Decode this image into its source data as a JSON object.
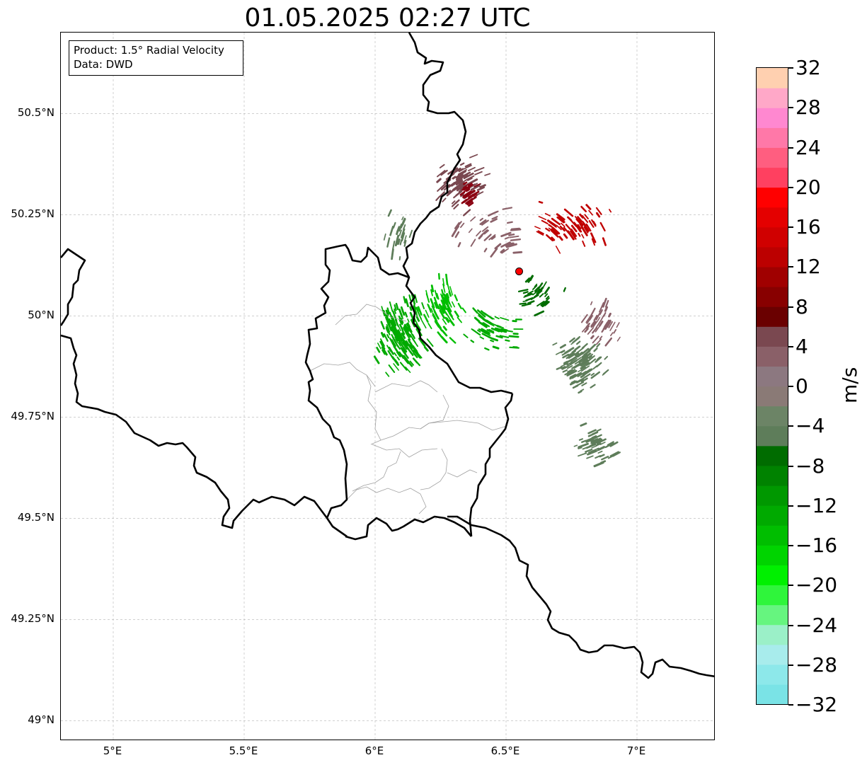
{
  "title": "01.05.2025 02:27 UTC",
  "info": {
    "product": "Product: 1.5° Radial Velocity",
    "data_source": "Data: DWD"
  },
  "axes": {
    "lat_labels": [
      "50.5°N",
      "50.25°N",
      "50°N",
      "49.75°N",
      "49.5°N",
      "49.25°N",
      "49°N"
    ],
    "lat_values": [
      50.5,
      50.25,
      50.0,
      49.75,
      49.5,
      49.25,
      49.0
    ],
    "lon_labels": [
      "5°E",
      "5.5°E",
      "6°E",
      "6.5°E",
      "7°E"
    ],
    "lon_values": [
      5.0,
      5.5,
      6.0,
      6.5,
      7.0
    ],
    "lon_range": [
      4.8,
      7.3
    ],
    "lat_range": [
      48.95,
      50.7
    ],
    "grid": true
  },
  "radar_site": {
    "lat": 50.11,
    "lon": 6.55,
    "color": "#ff0000"
  },
  "colorbar": {
    "unit": "m/s",
    "tick_labels": [
      "32",
      "28",
      "24",
      "20",
      "16",
      "12",
      "8",
      "4",
      "0",
      "−4",
      "−8",
      "−12",
      "−16",
      "−20",
      "−24",
      "−28",
      "−32"
    ],
    "tick_values": [
      32,
      28,
      24,
      20,
      16,
      12,
      8,
      4,
      0,
      -4,
      -8,
      -12,
      -16,
      -20,
      -24,
      -28,
      -32
    ],
    "range": [
      -32,
      32
    ],
    "colors_bottom_to_top": [
      "#7ae3e6",
      "#8de8ea",
      "#a8ecec",
      "#9bf0c8",
      "#66f57f",
      "#2ff53b",
      "#00f000",
      "#00d400",
      "#00be00",
      "#00aa00",
      "#009800",
      "#008200",
      "#006c00",
      "#5e7d5a",
      "#6c8466",
      "#8a7a76",
      "#8c7880",
      "#8a6068",
      "#7a4850",
      "#6a0000",
      "#880000",
      "#a00000",
      "#bc0000",
      "#d00000",
      "#e40000",
      "#ff0000",
      "#ff4060",
      "#ff5e80",
      "#ff78a8",
      "#ff88d0",
      "#ffa8c8",
      "#ffd0b0"
    ]
  },
  "echo_clusters": [
    {
      "lat": 50.33,
      "lon": 6.32,
      "spread_lon": 0.12,
      "spread_lat": 0.08,
      "count": 90,
      "color": "#7a4850"
    },
    {
      "lat": 50.3,
      "lon": 6.36,
      "spread_lon": 0.05,
      "spread_lat": 0.04,
      "count": 30,
      "color": "#8a0010"
    },
    {
      "lat": 50.22,
      "lon": 6.75,
      "spread_lon": 0.18,
      "spread_lat": 0.07,
      "count": 70,
      "color": "#c00000"
    },
    {
      "lat": 50.2,
      "lon": 6.45,
      "spread_lon": 0.18,
      "spread_lat": 0.08,
      "count": 45,
      "color": "#8a6068"
    },
    {
      "lat": 50.2,
      "lon": 6.1,
      "spread_lon": 0.12,
      "spread_lat": 0.08,
      "count": 25,
      "color": "#5e7d5a"
    },
    {
      "lat": 49.95,
      "lon": 6.1,
      "spread_lon": 0.12,
      "spread_lat": 0.12,
      "count": 170,
      "color": "#00aa00"
    },
    {
      "lat": 50.02,
      "lon": 6.25,
      "spread_lon": 0.12,
      "spread_lat": 0.1,
      "count": 80,
      "color": "#00be00"
    },
    {
      "lat": 49.97,
      "lon": 6.45,
      "spread_lon": 0.14,
      "spread_lat": 0.07,
      "count": 60,
      "color": "#00aa00"
    },
    {
      "lat": 49.88,
      "lon": 6.78,
      "spread_lon": 0.11,
      "spread_lat": 0.08,
      "count": 110,
      "color": "#5e7d5a"
    },
    {
      "lat": 49.98,
      "lon": 6.86,
      "spread_lon": 0.09,
      "spread_lat": 0.06,
      "count": 45,
      "color": "#8a6068"
    },
    {
      "lat": 49.68,
      "lon": 6.85,
      "spread_lon": 0.1,
      "spread_lat": 0.07,
      "count": 50,
      "color": "#5e7d5a"
    },
    {
      "lat": 50.05,
      "lon": 6.62,
      "spread_lon": 0.12,
      "spread_lat": 0.06,
      "count": 35,
      "color": "#006c00"
    }
  ]
}
